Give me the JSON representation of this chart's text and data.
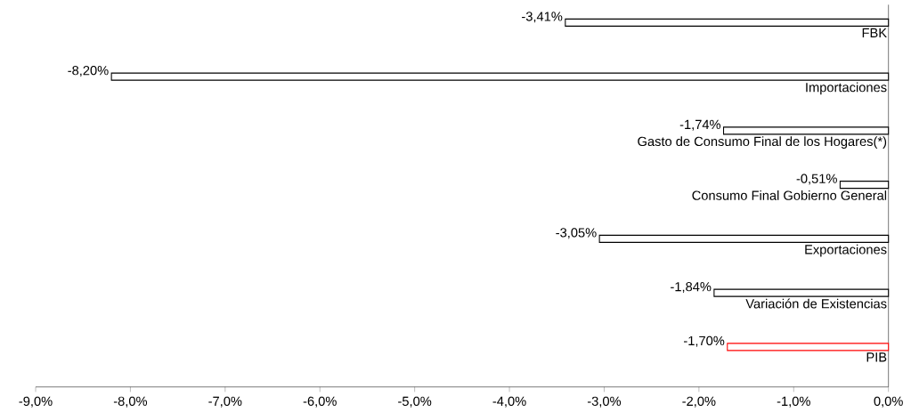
{
  "chart_data": {
    "type": "bar",
    "orientation": "horizontal",
    "categories": [
      "FBK",
      "Importaciones",
      "Gasto de Consumo Final de los Hogares(*)",
      "Consumo Final Gobierno General",
      "Exportaciones",
      "Variación de Existencias",
      "PIB"
    ],
    "values": [
      -3.41,
      -8.2,
      -1.74,
      -0.51,
      -3.05,
      -1.84,
      -1.7
    ],
    "value_labels": [
      "-3,41%",
      "-8,20%",
      "-1,74%",
      "-0,51%",
      "-3,05%",
      "-1,84%",
      "-1,70%"
    ],
    "colors": [
      "#000000",
      "#000000",
      "#000000",
      "#000000",
      "#000000",
      "#000000",
      "#ff0000"
    ],
    "xlim": [
      -9,
      0
    ],
    "xticks": [
      {
        "value": -9,
        "label": "-9,0%"
      },
      {
        "value": -8,
        "label": "-8,0%"
      },
      {
        "value": -7,
        "label": "-7,0%"
      },
      {
        "value": -6,
        "label": "-6,0%"
      },
      {
        "value": -5,
        "label": "-5,0%"
      },
      {
        "value": -4,
        "label": "-4,0%"
      },
      {
        "value": -3,
        "label": "-3,0%"
      },
      {
        "value": -2,
        "label": "-2,0%"
      },
      {
        "value": -1,
        "label": "-1,0%"
      },
      {
        "value": 0,
        "label": "0,0%"
      }
    ]
  }
}
